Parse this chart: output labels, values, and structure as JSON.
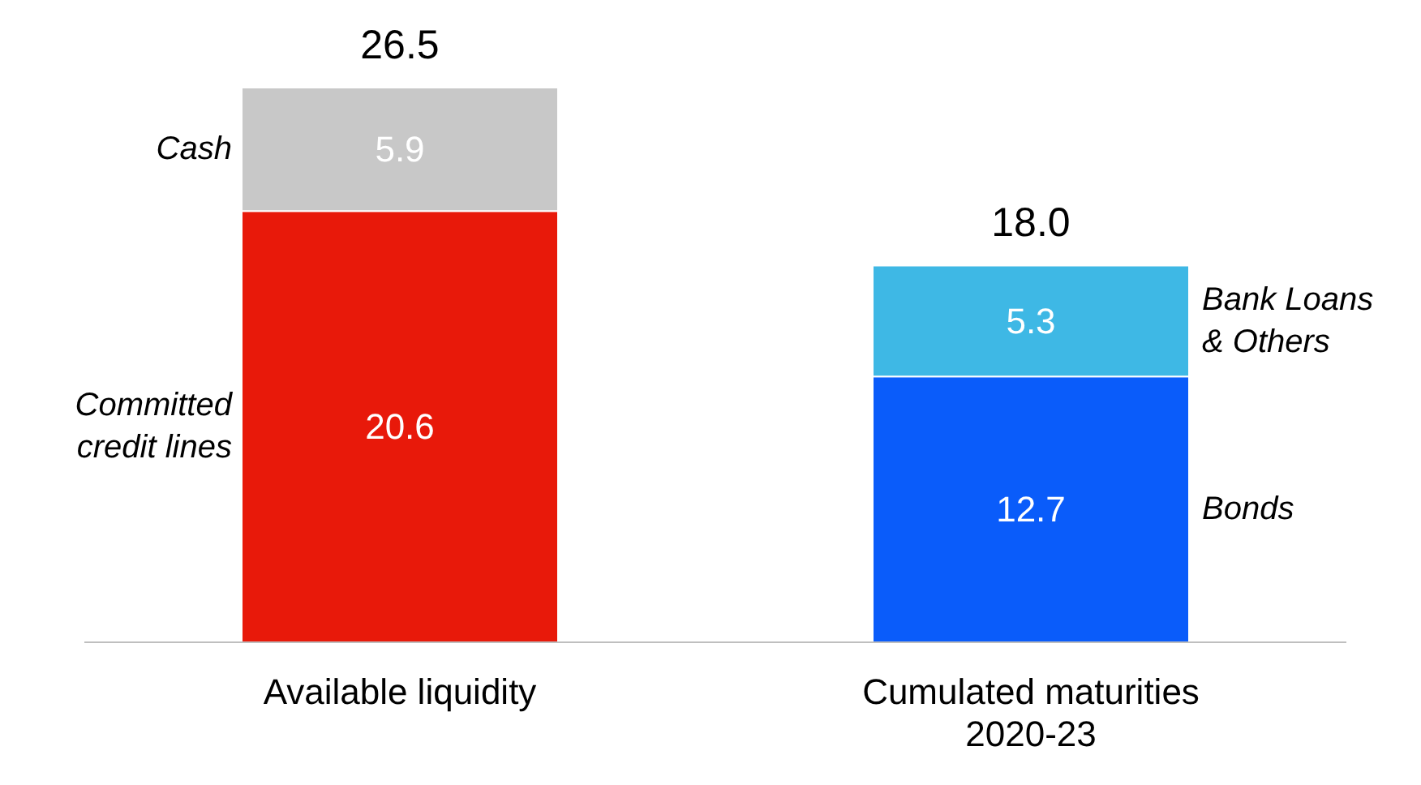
{
  "chart_data": {
    "type": "bar",
    "stacked": true,
    "categories": [
      "Available liquidity",
      "Cumulated maturities\n2020-23"
    ],
    "series": [
      {
        "name": "Committed credit lines",
        "color": "#e8190a",
        "values": [
          20.6,
          null
        ]
      },
      {
        "name": "Bonds",
        "color": "#0a5cfa",
        "values": [
          null,
          12.7
        ]
      },
      {
        "name": "Cash",
        "color": "#c8c8c8",
        "values": [
          5.9,
          null
        ]
      },
      {
        "name": "Bank Loans & Others",
        "color": "#3eb8e5",
        "values": [
          null,
          5.3
        ]
      }
    ],
    "data_labels": true,
    "totals": [
      "26.5",
      "18.0"
    ],
    "legend": false,
    "grid": false
  }
}
